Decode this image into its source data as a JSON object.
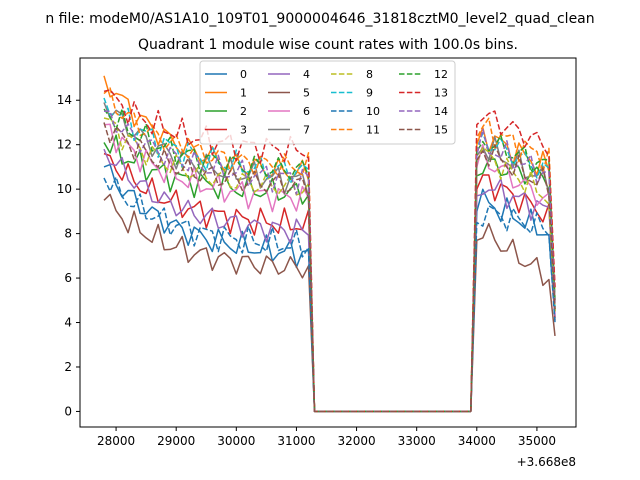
{
  "chart_data": {
    "type": "line",
    "suptitle": "n file: modeM0/AS1A10_109T01_9000004646_31818cztM0_level2_quad_clean",
    "title": "Quadrant 1 module wise count rates with 100.0s bins.",
    "xlabel": "",
    "ylabel": "",
    "x_offset_label": "+3.668e8",
    "xlim": [
      27400,
      35650
    ],
    "ylim": [
      -0.7,
      15.9
    ],
    "xticks": [
      28000,
      29000,
      30000,
      31000,
      32000,
      33000,
      34000,
      35000
    ],
    "xtick_labels": [
      "28000",
      "29000",
      "30000",
      "31000",
      "32000",
      "33000",
      "34000",
      "35000"
    ],
    "yticks": [
      0,
      2,
      4,
      6,
      8,
      10,
      12,
      14
    ],
    "ytick_labels": [
      "0",
      "2",
      "4",
      "6",
      "8",
      "10",
      "12",
      "14"
    ],
    "grid": false,
    "legend": {
      "location": "upper-center",
      "columns": 4
    },
    "segments": {
      "orbit1": {
        "start": 27800,
        "end": 31200,
        "step": 100
      },
      "gap": {
        "start": 31300,
        "end": 33900,
        "value": 0
      },
      "orbit2": {
        "start": 34000,
        "end": 35200,
        "step": 100
      },
      "final_x": 35300
    },
    "series": [
      {
        "name": "0",
        "color": "#1f77b4",
        "dashed": false,
        "o1_start": 11.0,
        "o1_end": 6.9,
        "o2_start": 9.6,
        "o2_end": 8.0,
        "final": 4.2
      },
      {
        "name": "1",
        "color": "#ff7f0e",
        "dashed": false,
        "o1_start": 15.1,
        "o1_end": 10.5,
        "o2_start": 12.6,
        "o2_end": 10.9,
        "final": 5.0
      },
      {
        "name": "2",
        "color": "#2ca02c",
        "dashed": false,
        "o1_start": 12.1,
        "o1_end": 9.7,
        "o2_start": 11.2,
        "o2_end": 10.5,
        "final": 4.5
      },
      {
        "name": "3",
        "color": "#d62728",
        "dashed": false,
        "o1_start": 11.6,
        "o1_end": 8.2,
        "o2_start": 10.6,
        "o2_end": 8.8,
        "final": 4.1
      },
      {
        "name": "4",
        "color": "#9467bd",
        "dashed": false,
        "o1_start": 11.8,
        "o1_end": 7.9,
        "o2_start": 10.3,
        "o2_end": 9.0,
        "final": 4.3
      },
      {
        "name": "5",
        "color": "#8c564b",
        "dashed": false,
        "o1_start": 9.5,
        "o1_end": 6.3,
        "o2_start": 8.3,
        "o2_end": 6.0,
        "final": 3.4
      },
      {
        "name": "6",
        "color": "#e377c2",
        "dashed": false,
        "o1_start": 12.9,
        "o1_end": 9.4,
        "o2_start": 11.6,
        "o2_end": 9.4,
        "final": 4.4
      },
      {
        "name": "7",
        "color": "#7f7f7f",
        "dashed": false,
        "o1_start": 13.9,
        "o1_end": 10.2,
        "o2_start": 12.1,
        "o2_end": 10.3,
        "final": 4.6
      },
      {
        "name": "8",
        "color": "#bcbd22",
        "dashed": true,
        "o1_start": 13.2,
        "o1_end": 9.9,
        "o2_start": 11.8,
        "o2_end": 9.6,
        "final": 4.5
      },
      {
        "name": "9",
        "color": "#17becf",
        "dashed": true,
        "o1_start": 14.1,
        "o1_end": 10.6,
        "o2_start": 12.4,
        "o2_end": 10.7,
        "final": 4.7
      },
      {
        "name": "10",
        "color": "#1f77b4",
        "dashed": true,
        "o1_start": 10.5,
        "o1_end": 7.3,
        "o2_start": 9.1,
        "o2_end": 8.2,
        "final": 4.0
      },
      {
        "name": "11",
        "color": "#ff7f0e",
        "dashed": true,
        "o1_start": 14.3,
        "o1_end": 10.8,
        "o2_start": 12.9,
        "o2_end": 11.3,
        "final": 5.5
      },
      {
        "name": "12",
        "color": "#2ca02c",
        "dashed": true,
        "o1_start": 13.6,
        "o1_end": 10.7,
        "o2_start": 12.3,
        "o2_end": 11.0,
        "final": 5.0
      },
      {
        "name": "13",
        "color": "#d62728",
        "dashed": true,
        "o1_start": 14.4,
        "o1_end": 11.6,
        "o2_start": 13.5,
        "o2_end": 11.9,
        "final": 5.6
      },
      {
        "name": "14",
        "color": "#9467bd",
        "dashed": true,
        "o1_start": 13.5,
        "o1_end": 10.3,
        "o2_start": 12.1,
        "o2_end": 10.6,
        "final": 4.8
      },
      {
        "name": "15",
        "color": "#8c564b",
        "dashed": true,
        "o1_start": 13.0,
        "o1_end": 10.0,
        "o2_start": 11.9,
        "o2_end": 10.1,
        "final": 4.6
      }
    ]
  }
}
